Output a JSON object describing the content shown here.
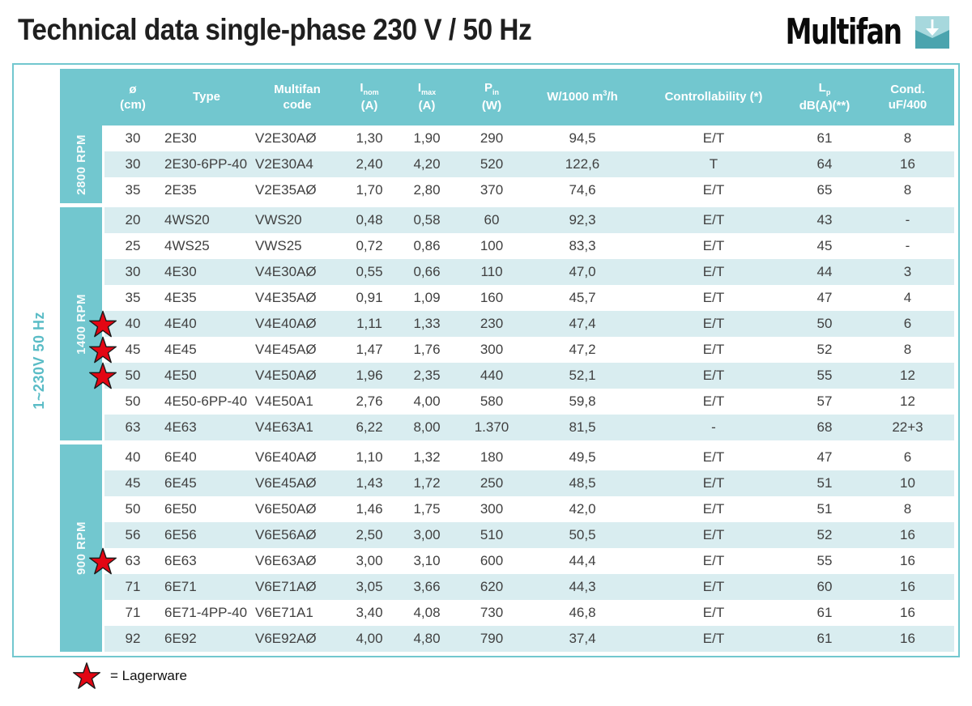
{
  "title": "Technical data single-phase 230 V / 50 Hz",
  "logo": {
    "text": "Multifan",
    "icon": "down-arrow-icon"
  },
  "side_label": "1~230V 50 Hz",
  "legend": {
    "text": "= Lagerware"
  },
  "colors": {
    "teal": "#72c7cf",
    "light_row": "#d9edf0",
    "star_red": "#e30613",
    "side_label_text": "#5abcc6",
    "header_text": "#ffffff",
    "cell_text": "#404040"
  },
  "table": {
    "headers": {
      "dia": {
        "top": "ø",
        "bottom": "(cm)"
      },
      "type": {
        "top": "Type"
      },
      "code": {
        "top": "Multifan",
        "bottom": "code"
      },
      "inom": {
        "main": "I",
        "sub": "nom",
        "bottom": "(A)"
      },
      "imax": {
        "main": "I",
        "sub": "max",
        "bottom": "(A)"
      },
      "pin": {
        "main": "P",
        "sub": "in",
        "bottom": "(W)"
      },
      "w1000": {
        "pre": "W/1000 m",
        "sup": "3",
        "post": "/h"
      },
      "ctrl": {
        "top": "Controllability (*)"
      },
      "lp": {
        "main": "L",
        "sub": "p",
        "bottom": "dB(A)(**)"
      },
      "cond": {
        "top": "Cond.",
        "bottom": "uF/400"
      }
    },
    "groups": [
      {
        "label": "2800 RPM",
        "rows": [
          {
            "starred": false,
            "cells": [
              "30",
              "2E30",
              "V2E30AØ",
              "1,30",
              "1,90",
              "290",
              "94,5",
              "E/T",
              "61",
              "8"
            ]
          },
          {
            "starred": false,
            "cells": [
              "30",
              "2E30-6PP-40",
              "V2E30A4",
              "2,40",
              "4,20",
              "520",
              "122,6",
              "T",
              "64",
              "16"
            ]
          },
          {
            "starred": false,
            "cells": [
              "35",
              "2E35",
              "V2E35AØ",
              "1,70",
              "2,80",
              "370",
              "74,6",
              "E/T",
              "65",
              "8"
            ]
          }
        ]
      },
      {
        "label": "1400 RPM",
        "rows": [
          {
            "starred": false,
            "cells": [
              "20",
              "4WS20",
              "VWS20",
              "0,48",
              "0,58",
              "60",
              "92,3",
              "E/T",
              "43",
              "-"
            ]
          },
          {
            "starred": false,
            "cells": [
              "25",
              "4WS25",
              "VWS25",
              "0,72",
              "0,86",
              "100",
              "83,3",
              "E/T",
              "45",
              "-"
            ]
          },
          {
            "starred": false,
            "cells": [
              "30",
              "4E30",
              "V4E30AØ",
              "0,55",
              "0,66",
              "110",
              "47,0",
              "E/T",
              "44",
              "3"
            ]
          },
          {
            "starred": false,
            "cells": [
              "35",
              "4E35",
              "V4E35AØ",
              "0,91",
              "1,09",
              "160",
              "45,7",
              "E/T",
              "47",
              "4"
            ]
          },
          {
            "starred": true,
            "cells": [
              "40",
              "4E40",
              "V4E40AØ",
              "1,11",
              "1,33",
              "230",
              "47,4",
              "E/T",
              "50",
              "6"
            ]
          },
          {
            "starred": true,
            "cells": [
              "45",
              "4E45",
              "V4E45AØ",
              "1,47",
              "1,76",
              "300",
              "47,2",
              "E/T",
              "52",
              "8"
            ]
          },
          {
            "starred": true,
            "cells": [
              "50",
              "4E50",
              "V4E50AØ",
              "1,96",
              "2,35",
              "440",
              "52,1",
              "E/T",
              "55",
              "12"
            ]
          },
          {
            "starred": false,
            "cells": [
              "50",
              "4E50-6PP-40",
              "V4E50A1",
              "2,76",
              "4,00",
              "580",
              "59,8",
              "E/T",
              "57",
              "12"
            ]
          },
          {
            "starred": false,
            "cells": [
              "63",
              "4E63",
              "V4E63A1",
              "6,22",
              "8,00",
              "1.370",
              "81,5",
              "-",
              "68",
              "22+3"
            ]
          }
        ]
      },
      {
        "label": "900 RPM",
        "rows": [
          {
            "starred": false,
            "cells": [
              "40",
              "6E40",
              "V6E40AØ",
              "1,10",
              "1,32",
              "180",
              "49,5",
              "E/T",
              "47",
              "6"
            ]
          },
          {
            "starred": false,
            "cells": [
              "45",
              "6E45",
              "V6E45AØ",
              "1,43",
              "1,72",
              "250",
              "48,5",
              "E/T",
              "51",
              "10"
            ]
          },
          {
            "starred": false,
            "cells": [
              "50",
              "6E50",
              "V6E50AØ",
              "1,46",
              "1,75",
              "300",
              "42,0",
              "E/T",
              "51",
              "8"
            ]
          },
          {
            "starred": false,
            "cells": [
              "56",
              "6E56",
              "V6E56AØ",
              "2,50",
              "3,00",
              "510",
              "50,5",
              "E/T",
              "52",
              "16"
            ]
          },
          {
            "starred": true,
            "cells": [
              "63",
              "6E63",
              "V6E63AØ",
              "3,00",
              "3,10",
              "600",
              "44,4",
              "E/T",
              "55",
              "16"
            ]
          },
          {
            "starred": false,
            "cells": [
              "71",
              "6E71",
              "V6E71AØ",
              "3,05",
              "3,66",
              "620",
              "44,3",
              "E/T",
              "60",
              "16"
            ]
          },
          {
            "starred": false,
            "cells": [
              "71",
              "6E71-4PP-40",
              "V6E71A1",
              "3,40",
              "4,08",
              "730",
              "46,8",
              "E/T",
              "61",
              "16"
            ]
          },
          {
            "starred": false,
            "cells": [
              "92",
              "6E92",
              "V6E92AØ",
              "4,00",
              "4,80",
              "790",
              "37,4",
              "E/T",
              "61",
              "16"
            ]
          }
        ]
      }
    ]
  }
}
